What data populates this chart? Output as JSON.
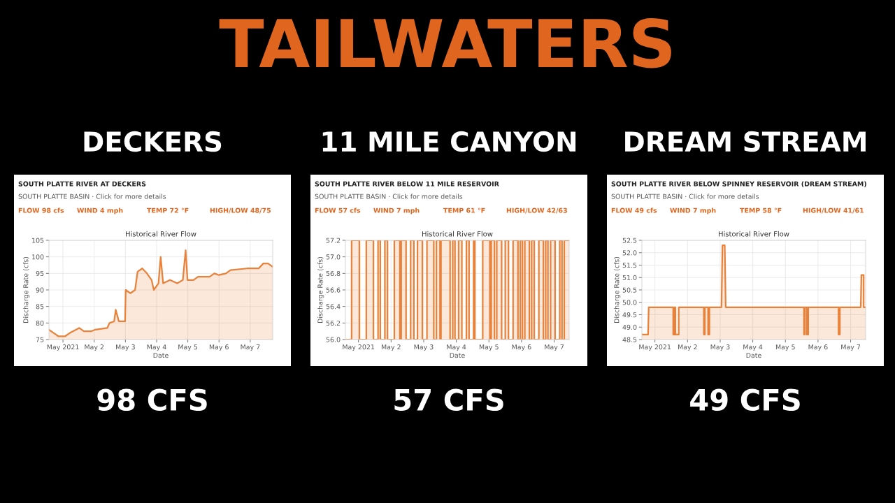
{
  "chart_data": [
    {
      "type": "other",
      "title": "TAILWATERS"
    },
    {
      "type": "area",
      "title": "Historical River Flow",
      "xlabel": "Date",
      "ylabel": "Discharge Rate (cfs)",
      "grid": true,
      "annotations": [
        "DECKERS",
        "SOUTH PLATTE RIVER AT DECKERS",
        "SOUTH PLATTE BASIN · Click for more details",
        "FLOW 98 cfs",
        "WIND 4 mph",
        "TEMP 72 °F",
        "HIGH/LOW 48/75",
        "98 CFS"
      ],
      "xlim": [
        "2021-04-30T13:12",
        "2021-05-07T17:17"
      ],
      "ylim": [
        75,
        105
      ],
      "yticks": [
        75,
        80,
        85,
        90,
        95,
        100,
        105
      ],
      "xticks": [
        {
          "value": "2021-05-01",
          "label": "May 2021"
        },
        {
          "value": "2021-05-02",
          "label": "May 2"
        },
        {
          "value": "2021-05-03",
          "label": "May 3"
        },
        {
          "value": "2021-05-04",
          "label": "May 4"
        },
        {
          "value": "2021-05-05",
          "label": "May 5"
        },
        {
          "value": "2021-05-06",
          "label": "May 6"
        },
        {
          "value": "2021-05-07",
          "label": "May 7"
        }
      ],
      "series": [
        {
          "color": "#e8823a",
          "x": [
            "2021-04-30T13:12",
            "2021-04-30T16:48",
            "2021-04-30T20:24",
            "2021-05-01T01:41",
            "2021-05-01T05:17",
            "2021-05-01T12:29",
            "2021-05-01T16:05",
            "2021-05-01T21:36",
            "2021-05-02T00:58",
            "2021-05-02T10:05",
            "2021-05-02T11:46",
            "2021-05-02T15:22",
            "2021-05-02T16:34",
            "2021-05-02T18:58",
            "2021-05-02T23:46",
            "2021-05-03T00:14",
            "2021-05-03T03:50",
            "2021-05-03T07:26",
            "2021-05-03T09:22",
            "2021-05-03T12:58",
            "2021-05-03T16:34",
            "2021-05-03T20:10",
            "2021-05-03T21:50",
            "2021-05-04T01:26",
            "2021-05-04T03:07",
            "2021-05-04T05:02",
            "2021-05-04T10:19",
            "2021-05-04T15:50",
            "2021-05-04T20:10",
            "2021-05-04T22:19",
            "2021-05-04T23:46",
            "2021-05-05T04:19",
            "2021-05-05T07:55",
            "2021-05-05T16:48",
            "2021-05-05T20:24",
            "2021-05-06T00:00",
            "2021-05-06T05:17",
            "2021-05-06T08:53",
            "2021-05-06T21:36",
            "2021-05-07T06:29",
            "2021-05-07T10:05",
            "2021-05-07T13:41",
            "2021-05-07T17:17"
          ],
          "values": [
            78,
            77,
            76,
            76,
            77,
            78.5,
            77.5,
            77.5,
            78,
            78.5,
            80,
            80.5,
            84,
            80.5,
            80.5,
            90,
            89,
            90,
            95.5,
            96.5,
            95,
            93,
            90,
            92,
            100,
            92,
            93,
            92,
            93,
            102,
            93,
            93,
            94,
            94,
            95,
            94.5,
            95,
            96,
            96.5,
            96.5,
            98,
            98,
            97
          ]
        }
      ]
    },
    {
      "type": "area",
      "title": "Historical River Flow",
      "xlabel": "Date",
      "ylabel": "Discharge Rate (cfs)",
      "grid": true,
      "annotations": [
        "11 MILE CANYON",
        "SOUTH PLATTE RIVER BELOW 11 MILE RESERVOIR",
        "SOUTH PLATTE BASIN · Click for more details",
        "FLOW 57 cfs",
        "WIND 7 mph",
        "TEMP 61 °F",
        "HIGH/LOW 42/63",
        "57 CFS"
      ],
      "xlim": [
        "2021-04-30T14:24",
        "2021-05-07T11:02"
      ],
      "ylim": [
        56.0,
        57.2
      ],
      "yticks": [
        {
          "value": 56.0,
          "label": "56.0"
        },
        {
          "value": 56.2,
          "label": "56.2"
        },
        {
          "value": 56.4,
          "label": "56.4"
        },
        {
          "value": 56.6,
          "label": "56.6"
        },
        {
          "value": 56.8,
          "label": "56.8"
        },
        {
          "value": 57.0,
          "label": "57.0"
        },
        {
          "value": 57.2,
          "label": "57.2"
        }
      ],
      "xticks": [
        {
          "value": "2021-05-01",
          "label": "May 2021"
        },
        {
          "value": "2021-05-02",
          "label": "May 2"
        },
        {
          "value": "2021-05-03",
          "label": "May 3"
        },
        {
          "value": "2021-05-04",
          "label": "May 4"
        },
        {
          "value": "2021-05-05",
          "label": "May 5"
        },
        {
          "value": "2021-05-06",
          "label": "May 6"
        },
        {
          "value": "2021-05-07",
          "label": "May 7"
        }
      ],
      "series": [
        {
          "color": "#e8823a",
          "x": [
            "2021-04-30T14:24",
            "2021-04-30T18:58",
            "2021-04-30T18:58",
            "2021-05-01T00:43",
            "2021-05-01T00:43",
            "2021-05-01T05:46",
            "2021-05-01T05:46",
            "2021-05-01T11:02",
            "2021-05-01T11:02",
            "2021-05-01T14:24",
            "2021-05-01T14:24",
            "2021-05-01T16:05",
            "2021-05-01T16:05",
            "2021-05-01T19:26",
            "2021-05-01T19:26",
            "2021-05-01T21:22",
            "2021-05-01T21:22",
            "2021-05-02T02:24",
            "2021-05-02T02:24",
            "2021-05-02T06:29",
            "2021-05-02T06:29",
            "2021-05-02T07:26",
            "2021-05-02T07:26",
            "2021-05-02T11:02",
            "2021-05-02T11:02",
            "2021-05-02T14:24",
            "2021-05-02T14:24",
            "2021-05-02T16:48",
            "2021-05-02T16:48",
            "2021-05-02T19:26",
            "2021-05-02T19:26",
            "2021-05-02T23:02",
            "2021-05-02T23:02",
            "2021-05-03T02:24",
            "2021-05-03T02:24",
            "2021-05-03T07:26",
            "2021-05-03T07:26",
            "2021-05-03T09:22",
            "2021-05-03T09:22",
            "2021-05-03T12:00",
            "2021-05-03T12:00",
            "2021-05-03T12:43",
            "2021-05-03T12:43",
            "2021-05-03T19:26",
            "2021-05-03T19:26",
            "2021-05-03T21:22",
            "2021-05-03T21:22",
            "2021-05-03T23:02",
            "2021-05-03T23:02",
            "2021-05-04T01:41",
            "2021-05-04T01:41",
            "2021-05-04T04:05",
            "2021-05-04T04:05",
            "2021-05-04T07:26",
            "2021-05-04T07:26",
            "2021-05-04T09:22",
            "2021-05-04T09:22",
            "2021-05-04T12:43",
            "2021-05-04T12:43",
            "2021-05-04T13:41",
            "2021-05-04T13:41",
            "2021-05-04T19:26",
            "2021-05-04T19:26",
            "2021-05-05T00:43",
            "2021-05-05T00:43",
            "2021-05-05T01:41",
            "2021-05-05T01:41",
            "2021-05-05T04:05",
            "2021-05-05T04:05",
            "2021-05-05T05:46",
            "2021-05-05T05:46",
            "2021-05-05T09:22",
            "2021-05-05T09:22",
            "2021-05-05T12:00",
            "2021-05-05T12:00",
            "2021-05-05T14:24",
            "2021-05-05T14:24",
            "2021-05-05T17:46",
            "2021-05-05T17:46",
            "2021-05-05T21:22",
            "2021-05-05T21:22",
            "2021-05-05T23:02",
            "2021-05-05T23:02",
            "2021-05-06T00:43",
            "2021-05-06T00:43",
            "2021-05-06T02:24",
            "2021-05-06T02:24",
            "2021-05-06T05:46",
            "2021-05-06T05:46",
            "2021-05-06T07:26",
            "2021-05-06T07:26",
            "2021-05-06T09:22",
            "2021-05-06T09:22",
            "2021-05-06T12:43",
            "2021-05-06T12:43",
            "2021-05-06T16:05",
            "2021-05-06T16:05",
            "2021-05-06T17:46",
            "2021-05-06T17:46",
            "2021-05-06T19:26",
            "2021-05-06T19:26",
            "2021-05-06T21:22",
            "2021-05-06T21:22",
            "2021-05-07T00:43",
            "2021-05-07T00:43",
            "2021-05-07T04:05",
            "2021-05-07T04:05",
            "2021-05-07T05:46",
            "2021-05-07T05:46",
            "2021-05-07T07:26",
            "2021-05-07T07:26",
            "2021-05-07T11:02"
          ],
          "values": [
            56.0,
            56.0,
            57.2,
            57.2,
            56.0,
            56.0,
            57.2,
            57.2,
            56.0,
            56.0,
            57.2,
            57.2,
            56.0,
            56.0,
            57.2,
            57.2,
            56.0,
            56.0,
            57.2,
            57.2,
            56.0,
            56.0,
            57.2,
            57.2,
            56.0,
            56.0,
            57.2,
            57.2,
            56.0,
            56.0,
            57.2,
            57.2,
            56.0,
            56.0,
            57.2,
            57.2,
            56.0,
            56.0,
            57.2,
            57.2,
            56.0,
            56.0,
            57.2,
            57.2,
            56.0,
            56.0,
            57.2,
            57.2,
            56.0,
            56.0,
            57.2,
            57.2,
            56.0,
            56.0,
            57.2,
            57.2,
            56.0,
            56.0,
            57.2,
            57.2,
            56.0,
            56.0,
            57.2,
            57.2,
            56.0,
            56.0,
            57.2,
            57.2,
            56.0,
            56.0,
            57.2,
            57.2,
            56.0,
            56.0,
            57.2,
            57.2,
            56.0,
            56.0,
            57.2,
            57.2,
            56.0,
            56.0,
            57.2,
            57.2,
            56.0,
            56.0,
            57.2,
            57.2,
            56.0,
            56.0,
            57.2,
            57.2,
            56.0,
            56.0,
            57.2,
            57.2,
            56.0,
            56.0,
            57.2,
            57.2,
            56.0,
            56.0,
            57.2,
            57.2,
            56.0,
            56.0,
            57.2,
            57.2,
            56.0,
            56.0,
            57.2,
            57.2
          ]
        }
      ]
    },
    {
      "type": "area",
      "title": "Historical River Flow",
      "xlabel": "Date",
      "ylabel": "Discharge Rate (cfs)",
      "grid": true,
      "annotations": [
        "DREAM STREAM",
        "SOUTH PLATTE RIVER BELOW SPINNEY RESERVOIR (DREAM STREAM)",
        "SOUTH PLATTE BASIN · Click for more details",
        "FLOW 49 cfs",
        "WIND 7 mph",
        "TEMP 58 °F",
        "HIGH/LOW 41/61",
        "49 CFS"
      ],
      "xlim": [
        "2021-04-30T14:24",
        "2021-05-07T11:02"
      ],
      "ylim": [
        48.5,
        52.5
      ],
      "yticks": [
        {
          "value": 48.5,
          "label": "48.5"
        },
        {
          "value": 49.0,
          "label": "49.0"
        },
        {
          "value": 49.5,
          "label": "49.5"
        },
        {
          "value": 50.0,
          "label": "50.0"
        },
        {
          "value": 50.5,
          "label": "50.5"
        },
        {
          "value": 51.0,
          "label": "51.0"
        },
        {
          "value": 51.5,
          "label": "51.5"
        },
        {
          "value": 52.0,
          "label": "52.0"
        },
        {
          "value": 52.5,
          "label": "52.5"
        }
      ],
      "xticks": [
        {
          "value": "2021-05-01",
          "label": "May 2021"
        },
        {
          "value": "2021-05-02",
          "label": "May 2"
        },
        {
          "value": "2021-05-03",
          "label": "May 3"
        },
        {
          "value": "2021-05-04",
          "label": "May 4"
        },
        {
          "value": "2021-05-05",
          "label": "May 5"
        },
        {
          "value": "2021-05-06",
          "label": "May 6"
        },
        {
          "value": "2021-05-07",
          "label": "May 7"
        }
      ],
      "series": [
        {
          "color": "#e8823a",
          "x": [
            "2021-04-30T14:24",
            "2021-04-30T18:58",
            "2021-04-30T19:26",
            "2021-05-01T13:26",
            "2021-05-01T13:26",
            "2021-05-01T14:24",
            "2021-05-01T14:24",
            "2021-05-01T15:07",
            "2021-05-01T15:07",
            "2021-05-01T17:31",
            "2021-05-01T17:31",
            "2021-05-02T12:00",
            "2021-05-02T12:00",
            "2021-05-02T12:43",
            "2021-05-02T12:43",
            "2021-05-02T15:07",
            "2021-05-02T15:07",
            "2021-05-02T16:05",
            "2021-05-02T16:05",
            "2021-05-03T00:58",
            "2021-05-03T01:41",
            "2021-05-03T03:22",
            "2021-05-03T04:05",
            "2021-05-05T13:41",
            "2021-05-05T13:41",
            "2021-05-05T14:24",
            "2021-05-05T14:24",
            "2021-05-05T15:50",
            "2021-05-05T15:50",
            "2021-05-05T16:48",
            "2021-05-05T16:48",
            "2021-05-06T15:07",
            "2021-05-06T15:07",
            "2021-05-06T16:05",
            "2021-05-06T16:05",
            "2021-05-07T07:26",
            "2021-05-07T07:55",
            "2021-05-07T09:36",
            "2021-05-07T09:36",
            "2021-05-07T11:02"
          ],
          "values": [
            48.7,
            48.7,
            49.8,
            49.8,
            48.7,
            48.7,
            49.8,
            49.8,
            48.7,
            48.7,
            49.8,
            49.8,
            48.7,
            48.7,
            49.8,
            49.8,
            48.7,
            48.7,
            49.8,
            49.8,
            52.3,
            52.3,
            49.8,
            49.8,
            48.7,
            48.7,
            49.8,
            49.8,
            48.7,
            48.7,
            49.8,
            49.8,
            48.7,
            48.7,
            49.8,
            49.8,
            51.1,
            51.1,
            49.8,
            49.8
          ]
        }
      ]
    }
  ]
}
